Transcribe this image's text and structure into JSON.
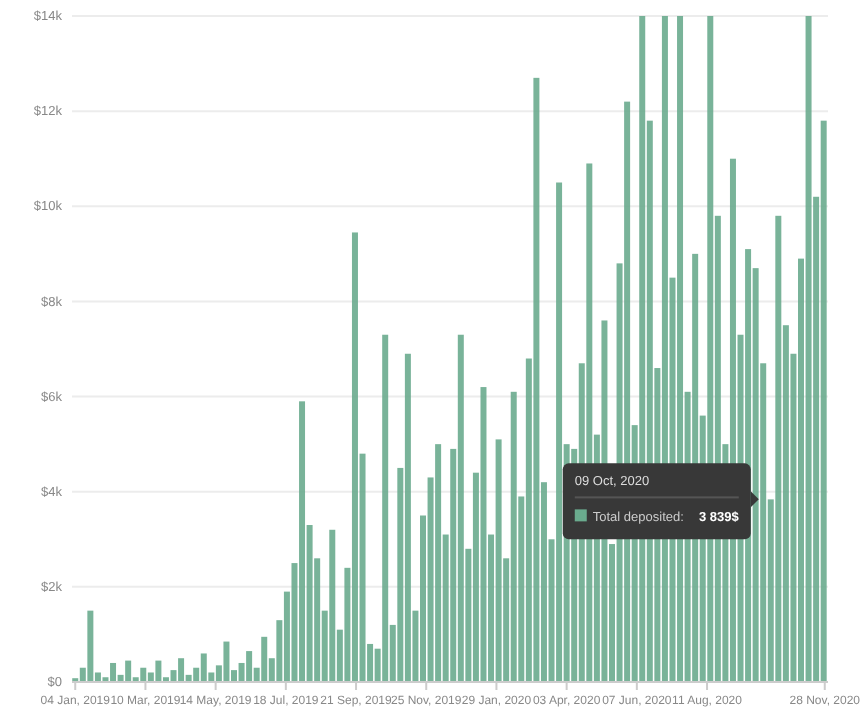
{
  "chart_data": {
    "type": "bar",
    "x": [
      "2019-01-04",
      "2019-01-11",
      "2019-01-18",
      "2019-01-25",
      "2019-02-01",
      "2019-02-08",
      "2019-02-15",
      "2019-02-22",
      "2019-03-01",
      "2019-03-08",
      "2019-03-15",
      "2019-03-22",
      "2019-03-29",
      "2019-04-05",
      "2019-04-12",
      "2019-04-19",
      "2019-04-26",
      "2019-05-03",
      "2019-05-10",
      "2019-05-17",
      "2019-05-24",
      "2019-05-31",
      "2019-06-07",
      "2019-06-14",
      "2019-06-21",
      "2019-06-28",
      "2019-07-05",
      "2019-07-12",
      "2019-07-19",
      "2019-07-26",
      "2019-08-02",
      "2019-08-09",
      "2019-08-16",
      "2019-08-23",
      "2019-08-30",
      "2019-09-06",
      "2019-09-13",
      "2019-09-20",
      "2019-09-27",
      "2019-10-04",
      "2019-10-11",
      "2019-10-18",
      "2019-10-25",
      "2019-11-01",
      "2019-11-08",
      "2019-11-15",
      "2019-11-22",
      "2019-11-29",
      "2019-12-06",
      "2019-12-13",
      "2019-12-20",
      "2019-12-27",
      "2020-01-03",
      "2020-01-10",
      "2020-01-17",
      "2020-01-24",
      "2020-01-31",
      "2020-02-07",
      "2020-02-14",
      "2020-02-21",
      "2020-02-28",
      "2020-03-06",
      "2020-03-13",
      "2020-03-20",
      "2020-03-27",
      "2020-04-03",
      "2020-04-10",
      "2020-04-17",
      "2020-04-24",
      "2020-05-01",
      "2020-05-08",
      "2020-05-15",
      "2020-05-22",
      "2020-05-29",
      "2020-06-05",
      "2020-06-12",
      "2020-06-19",
      "2020-06-26",
      "2020-07-03",
      "2020-07-10",
      "2020-07-17",
      "2020-07-24",
      "2020-07-31",
      "2020-08-07",
      "2020-08-14",
      "2020-08-21",
      "2020-08-28",
      "2020-09-04",
      "2020-09-11",
      "2020-09-18",
      "2020-09-25",
      "2020-10-02",
      "2020-10-09",
      "2020-10-16",
      "2020-10-23",
      "2020-10-30",
      "2020-11-06",
      "2020-11-13",
      "2020-11-20",
      "2020-11-27"
    ],
    "series": [
      {
        "color": "#6aab8e",
        "values": [
          80,
          300,
          1500,
          200,
          100,
          400,
          150,
          450,
          100,
          300,
          200,
          450,
          100,
          250,
          500,
          150,
          300,
          600,
          200,
          350,
          850,
          250,
          400,
          650,
          300,
          950,
          500,
          1300,
          1900,
          2500,
          5900,
          3300,
          2600,
          1500,
          3200,
          1100,
          2400,
          9450,
          4800,
          800,
          700,
          7300,
          1200,
          4500,
          6900,
          1500,
          3500,
          4300,
          5000,
          3100,
          4900,
          7300,
          2800,
          4400,
          6200,
          3100,
          5100,
          2600,
          6100,
          3900,
          6800,
          12700,
          4200,
          3000,
          10500,
          5000,
          4900,
          6700,
          10900,
          5200,
          7600,
          2900,
          8800,
          12200,
          5400,
          14000,
          11800,
          6600,
          14000,
          8500,
          14000,
          6100,
          9000,
          5600,
          14000,
          9800,
          5000,
          11000,
          7300,
          9100,
          8700,
          6700,
          3839,
          9800,
          7500,
          6900,
          8900,
          14000,
          10200,
          11800
        ]
      }
    ],
    "xlim": [
      "2019-01-01",
      "2020-12-01"
    ],
    "xticks": [
      {
        "value": "2019-01-04",
        "label": "04 Jan, 2019"
      },
      {
        "value": "2019-03-10",
        "label": "10 Mar, 2019"
      },
      {
        "value": "2019-05-14",
        "label": "14 May, 2019"
      },
      {
        "value": "2019-07-18",
        "label": "18 Jul, 2019"
      },
      {
        "value": "2019-09-21",
        "label": "21 Sep, 2019"
      },
      {
        "value": "2019-11-25",
        "label": "25 Nov, 2019"
      },
      {
        "value": "2020-01-29",
        "label": "29 Jan, 2020"
      },
      {
        "value": "2020-04-03",
        "label": "03 Apr, 2020"
      },
      {
        "value": "2020-06-07",
        "label": "07 Jun, 2020"
      },
      {
        "value": "2020-08-11",
        "label": "11 Aug, 2020"
      },
      {
        "value": "2020-11-28",
        "label": "28 Nov, 2020"
      }
    ],
    "ylim": [
      0,
      14000
    ],
    "yticks": [
      {
        "value": 0,
        "label": "$0"
      },
      {
        "value": 2000,
        "label": "$2k"
      },
      {
        "value": 4000,
        "label": "$4k"
      },
      {
        "value": 6000,
        "label": "$6k"
      },
      {
        "value": 8000,
        "label": "$8k"
      },
      {
        "value": 10000,
        "label": "$10k"
      },
      {
        "value": 12000,
        "label": "$12k"
      },
      {
        "value": 14000,
        "label": "$14k"
      }
    ],
    "grid": "y",
    "annotations": [
      "09 Oct, 2020",
      "Total deposited:",
      {
        "text": "3 839$",
        "x": "2020-10-09",
        "y": 3839
      }
    ]
  }
}
